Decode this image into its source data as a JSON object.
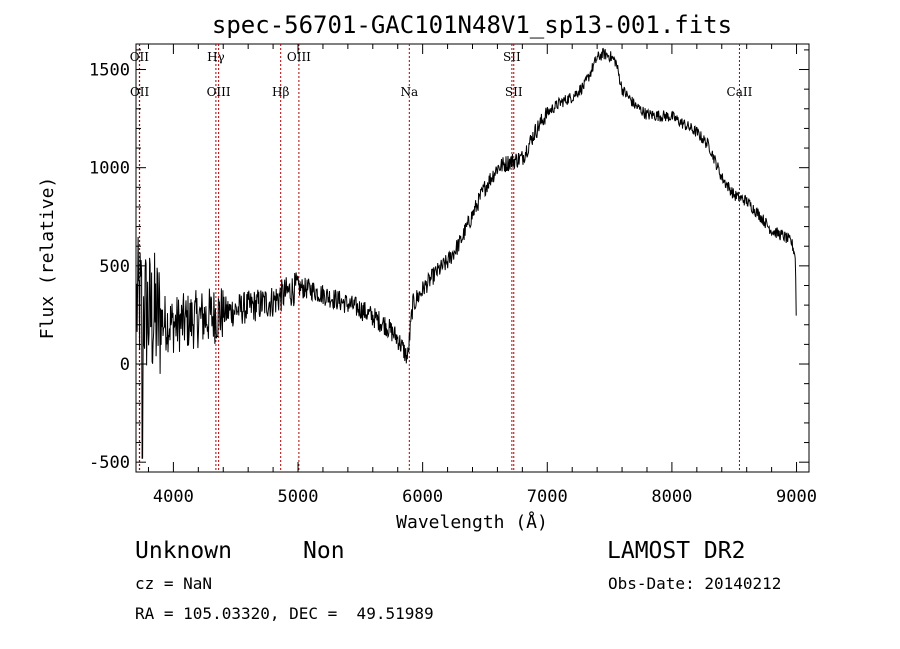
{
  "chart_data": {
    "type": "line",
    "title": "spec-56701-GAC101N48V1_sp13-001.fits",
    "xlabel": "Wavelength (Å)",
    "ylabel": "Flux (relative)",
    "xlim": [
      3700,
      9100
    ],
    "ylim": [
      -550,
      1630
    ],
    "xticks": [
      4000,
      5000,
      6000,
      7000,
      8000,
      9000
    ],
    "yticks": [
      -500,
      0,
      500,
      1000,
      1500
    ],
    "grid": false,
    "spectrum_anchors": {
      "x": [
        3700,
        3750,
        3800,
        3900,
        4000,
        4200,
        4400,
        4600,
        4800,
        4900,
        5000,
        5100,
        5300,
        5500,
        5700,
        5800,
        5880,
        5920,
        6000,
        6100,
        6200,
        6300,
        6400,
        6500,
        6600,
        6700,
        6800,
        6900,
        7000,
        7100,
        7200,
        7300,
        7400,
        7450,
        7500,
        7550,
        7600,
        7700,
        7800,
        8000,
        8200,
        8300,
        8400,
        8500,
        8600,
        8700,
        8800,
        8900,
        8960,
        8990,
        9000
      ],
      "y": [
        300,
        300,
        250,
        220,
        200,
        230,
        260,
        290,
        320,
        360,
        390,
        380,
        330,
        280,
        200,
        130,
        30,
        300,
        380,
        460,
        520,
        620,
        760,
        900,
        1000,
        1030,
        1050,
        1180,
        1280,
        1330,
        1360,
        1420,
        1560,
        1580,
        1570,
        1540,
        1400,
        1320,
        1270,
        1260,
        1180,
        1110,
        950,
        860,
        830,
        760,
        680,
        650,
        620,
        550,
        150
      ]
    },
    "line_markers": [
      {
        "label": "OII",
        "x": 3727,
        "row": "top"
      },
      {
        "label": "OII",
        "x": 3729,
        "row": "bottom"
      },
      {
        "label": "Hγ",
        "x": 4341,
        "row": "top"
      },
      {
        "label": "OIII",
        "x": 4363,
        "row": "bottom"
      },
      {
        "label": "Hβ",
        "x": 4861,
        "row": "bottom"
      },
      {
        "label": "OIII",
        "x": 5007,
        "row": "top"
      },
      {
        "label": "Na",
        "x": 5893,
        "row": "bottom"
      },
      {
        "label": "SII",
        "x": 6716,
        "row": "top"
      },
      {
        "label": "SII",
        "x": 6731,
        "row": "bottom"
      },
      {
        "label": "CaII",
        "x": 8542,
        "row": "bottom"
      }
    ],
    "line_color": "#000000",
    "marker_color": "#b00000"
  },
  "info": {
    "class": "Unknown",
    "subclass": "Non",
    "survey": "LAMOST DR2",
    "cz": "cz = NaN",
    "obs_date": "Obs-Date: 20140212",
    "coords": "RA = 105.03320, DEC =  49.51989"
  }
}
